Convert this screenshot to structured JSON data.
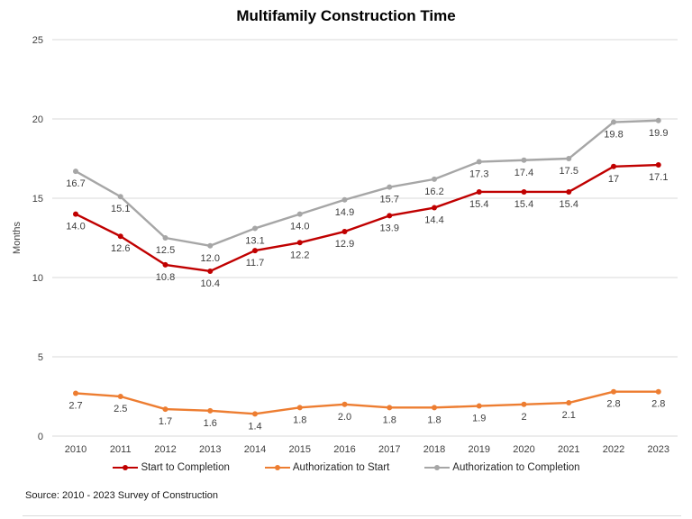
{
  "source_note": "Source: 2010 - 2023 Survey of Construction",
  "chart_data": {
    "type": "line",
    "title": "Multifamily Construction Time",
    "xlabel": "",
    "ylabel": "Months",
    "ylim": [
      0,
      25
    ],
    "yticks": [
      0,
      5,
      10,
      15,
      20,
      25
    ],
    "grid": true,
    "legend_position": "bottom",
    "gridline_color": "#d9d9d9",
    "categories": [
      "2010",
      "2011",
      "2012",
      "2013",
      "2014",
      "2015",
      "2016",
      "2017",
      "2018",
      "2019",
      "2020",
      "2021",
      "2022",
      "2023"
    ],
    "series": [
      {
        "name": "Start to Completion",
        "color": "#c00000",
        "values": [
          14.0,
          12.6,
          10.8,
          10.4,
          11.7,
          12.2,
          12.9,
          13.9,
          14.4,
          15.4,
          15.4,
          15.4,
          17,
          17.1
        ],
        "labels": [
          "14.0",
          "12.6",
          "10.8",
          "10.4",
          "11.7",
          "12.2",
          "12.9",
          "13.9",
          "14.4",
          "15.4",
          "15.4",
          "15.4",
          "17",
          "17.1"
        ]
      },
      {
        "name": "Authorization to Start",
        "color": "#ed7d31",
        "values": [
          2.7,
          2.5,
          1.7,
          1.6,
          1.4,
          1.8,
          2.0,
          1.8,
          1.8,
          1.9,
          2,
          2.1,
          2.8,
          2.8
        ],
        "labels": [
          "2.7",
          "2.5",
          "1.7",
          "1.6",
          "1.4",
          "1.8",
          "2.0",
          "1.8",
          "1.8",
          "1.9",
          "2",
          "2.1",
          "2.8",
          "2.8"
        ]
      },
      {
        "name": "Authorization to Completion",
        "color": "#a6a6a6",
        "values": [
          16.7,
          15.1,
          12.5,
          12.0,
          13.1,
          14.0,
          14.9,
          15.7,
          16.2,
          17.3,
          17.4,
          17.5,
          19.8,
          19.9
        ],
        "labels": [
          "16.7",
          "15.1",
          "12.5",
          "12.0",
          "13.1",
          "14.0",
          "14.9",
          "15.7",
          "16.2",
          "17.3",
          "17.4",
          "17.5",
          "19.8",
          "19.9"
        ]
      }
    ]
  }
}
